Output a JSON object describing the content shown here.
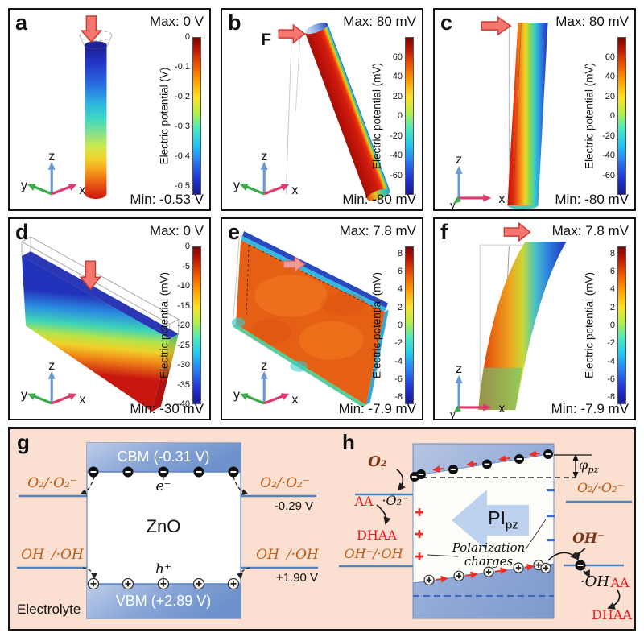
{
  "axes": {
    "x": "x",
    "y": "y",
    "z": "z"
  },
  "panels": [
    {
      "label": "a",
      "max": "Max: 0 V",
      "min": "Min: -0.53 V",
      "colorbar": {
        "label": "Electric potential (V)",
        "bar_max": 0,
        "bar_min": -0.53,
        "ticks": [
          {
            "label": "0",
            "v": 0
          },
          {
            "label": "-0.1",
            "v": -0.1
          },
          {
            "label": "-0.2",
            "v": -0.2
          },
          {
            "label": "-0.3",
            "v": -0.3
          },
          {
            "label": "-0.4",
            "v": -0.4
          },
          {
            "label": "-0.5",
            "v": -0.5
          }
        ]
      }
    },
    {
      "label": "b",
      "force": "F",
      "max": "Max: 80 mV",
      "min": "Min: -80 mV",
      "colorbar": {
        "label": "Electric potential (mV)",
        "bar_max": 80,
        "bar_min": -80,
        "ticks": [
          {
            "label": "60",
            "v": 60
          },
          {
            "label": "40",
            "v": 40
          },
          {
            "label": "20",
            "v": 20
          },
          {
            "label": "0",
            "v": 0
          },
          {
            "label": "-20",
            "v": -20
          },
          {
            "label": "-40",
            "v": -40
          },
          {
            "label": "-60",
            "v": -60
          }
        ]
      }
    },
    {
      "label": "c",
      "max": "Max: 80 mV",
      "min": "Min: -80 mV",
      "colorbar": {
        "label": "Electric potential (mV)",
        "bar_max": 80,
        "bar_min": -80,
        "ticks": [
          {
            "label": "60",
            "v": 60
          },
          {
            "label": "40",
            "v": 40
          },
          {
            "label": "20",
            "v": 20
          },
          {
            "label": "0",
            "v": 0
          },
          {
            "label": "-20",
            "v": -20
          },
          {
            "label": "-40",
            "v": -40
          },
          {
            "label": "-60",
            "v": -60
          }
        ]
      }
    },
    {
      "label": "d",
      "max": "Max: 0 V",
      "min": "Min: -30 mV",
      "colorbar": {
        "label": "Electric potential (mV)",
        "bar_max": 0,
        "bar_min": -40,
        "ticks": [
          {
            "label": "0",
            "v": 0
          },
          {
            "label": "-5",
            "v": -5
          },
          {
            "label": "-10",
            "v": -10
          },
          {
            "label": "-15",
            "v": -15
          },
          {
            "label": "-20",
            "v": -20
          },
          {
            "label": "-25",
            "v": -25
          },
          {
            "label": "-30",
            "v": -30
          },
          {
            "label": "-35",
            "v": -35
          },
          {
            "label": "-40",
            "v": -40
          }
        ]
      }
    },
    {
      "label": "e",
      "max": "Max: 7.8 mV",
      "min": "Min: -7.9 mV",
      "colorbar": {
        "label": "Electric potential (mV)",
        "bar_max": 8.8,
        "bar_min": -8.8,
        "ticks": [
          {
            "label": "8",
            "v": 8
          },
          {
            "label": "6",
            "v": 6
          },
          {
            "label": "4",
            "v": 4
          },
          {
            "label": "2",
            "v": 2
          },
          {
            "label": "0",
            "v": 0
          },
          {
            "label": "-2",
            "v": -2
          },
          {
            "label": "-4",
            "v": -4
          },
          {
            "label": "-6",
            "v": -6
          },
          {
            "label": "-8",
            "v": -8
          }
        ]
      }
    },
    {
      "label": "f",
      "max": "Max: 7.8 mV",
      "min": "Min: -7.9 mV",
      "colorbar": {
        "label": "Electric potential (mV)",
        "bar_max": 8.8,
        "bar_min": -8.8,
        "ticks": [
          {
            "label": "8",
            "v": 8
          },
          {
            "label": "6",
            "v": 6
          },
          {
            "label": "4",
            "v": 4
          },
          {
            "label": "2",
            "v": 2
          },
          {
            "label": "0",
            "v": 0
          },
          {
            "label": "-2",
            "v": -2
          },
          {
            "label": "-4",
            "v": -4
          },
          {
            "label": "-6",
            "v": -6
          },
          {
            "label": "-8",
            "v": -8
          }
        ]
      }
    }
  ],
  "g": {
    "label": "g",
    "cbm": "CBM (-0.31 V)",
    "vbm": "VBM (+2.89 V)",
    "material": "ZnO",
    "electron": "e⁻",
    "hole": "h⁺",
    "o2_level_left": "O₂/·O₂⁻",
    "o2_level_right": "O₂/·O₂⁻",
    "o2_potential": "-0.29 V",
    "oh_level_left": "OH⁻/·OH",
    "oh_level_right": "OH⁻/·OH",
    "oh_potential": "+1.90 V",
    "electrolyte": "Electrolyte"
  },
  "h": {
    "label": "h",
    "o2": "O₂",
    "aa_left": "AA",
    "superoxide": "·O₂⁻",
    "dhaa_left": "DHAA",
    "oh_level_left": "OH⁻/·OH",
    "o2_level_right": "O₂/·O₂⁻",
    "phi": "φ",
    "phi_sub": "pz",
    "pol_arrow": "PI",
    "pol_arrow_sub": "pz",
    "polarization_1": "Polarization",
    "polarization_2": "charges",
    "oh_ion": "OH⁻",
    "oh_radical": "·OH",
    "aa_right": "AA",
    "dhaa_right": "DHAA"
  },
  "colors": {
    "electrolyte_bg": "#fbdfd0",
    "band_blue": "#7e9ccf",
    "level_line_blue": "#4f81bd",
    "formula_orange": "#c05a12",
    "reaction_red": "#e8191d",
    "force_arrow": "#f3776f",
    "jet_top": "#7a0403",
    "jet_bottom": "#131a8f",
    "big_arrow_blue": "#bdd2ee"
  }
}
